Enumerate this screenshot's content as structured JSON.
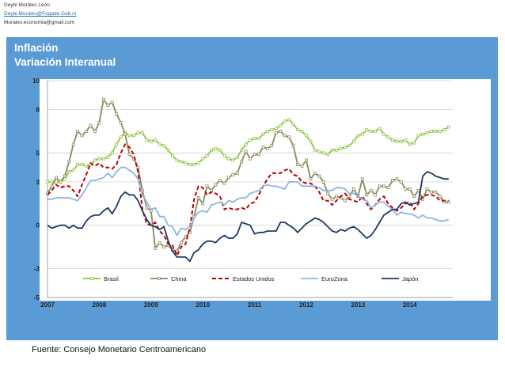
{
  "header": {
    "author": "Deybi Morales León",
    "email1": "Deybi.Morales@Fogade.Gob.ni",
    "email2": "Morales.economia@gmail.com"
  },
  "footer": {
    "source": "Fuente: Consejo Monetario Centroamericano"
  },
  "colors": {
    "panel": "#5b9bd5",
    "brasil": "#8cc63f",
    "china": "#8b8a5c",
    "estados_unidos": "#c00000",
    "eurozona": "#8eb4e3",
    "japon": "#1f3864"
  },
  "chart_data": {
    "type": "line",
    "title": "Inflación",
    "subtitle": "Variación Interanual",
    "xlabel": "",
    "ylabel": "",
    "x_ticks": [
      "2007",
      "2008",
      "2009",
      "2010",
      "2011",
      "2012",
      "2013",
      "2014"
    ],
    "y_ticks": [
      "10",
      "8",
      "5",
      "3",
      "0",
      "-3",
      "-5"
    ],
    "ylim": [
      -5,
      10
    ],
    "xlim": [
      2007.0,
      2014.83
    ],
    "grid": true,
    "legend_position": "bottom-inside",
    "series": [
      {
        "name": "Brasil",
        "color": "#8cc63f",
        "style": "line-square-markers",
        "x": [
          2007.0,
          2007.083,
          2007.167,
          2007.25,
          2007.333,
          2007.417,
          2007.5,
          2007.583,
          2007.667,
          2007.75,
          2007.833,
          2007.917,
          2008.0,
          2008.083,
          2008.167,
          2008.25,
          2008.333,
          2008.417,
          2008.5,
          2008.583,
          2008.667,
          2008.75,
          2008.833,
          2008.917,
          2009.0,
          2009.083,
          2009.167,
          2009.25,
          2009.333,
          2009.417,
          2009.5,
          2009.583,
          2009.667,
          2009.75,
          2009.833,
          2009.917,
          2010.0,
          2010.083,
          2010.167,
          2010.25,
          2010.333,
          2010.417,
          2010.5,
          2010.583,
          2010.667,
          2010.75,
          2010.833,
          2010.917,
          2011.0,
          2011.083,
          2011.167,
          2011.25,
          2011.333,
          2011.417,
          2011.5,
          2011.583,
          2011.667,
          2011.75,
          2011.833,
          2011.917,
          2012.0,
          2012.083,
          2012.167,
          2012.25,
          2012.333,
          2012.417,
          2012.5,
          2012.583,
          2012.667,
          2012.75,
          2012.833,
          2012.917,
          2013.0,
          2013.083,
          2013.167,
          2013.25,
          2013.333,
          2013.417,
          2013.5,
          2013.583,
          2013.667,
          2013.75,
          2013.833,
          2013.917,
          2014.0,
          2014.083,
          2014.167,
          2014.25,
          2014.333,
          2014.417,
          2014.5,
          2014.583,
          2014.667,
          2014.75
        ],
        "values": [
          3.0,
          3.0,
          3.0,
          3.0,
          3.2,
          3.7,
          3.8,
          4.2,
          4.2,
          4.1,
          4.2,
          4.5,
          4.6,
          4.6,
          4.7,
          5.0,
          5.6,
          6.1,
          6.4,
          6.2,
          6.2,
          6.4,
          6.4,
          5.9,
          5.8,
          5.9,
          5.6,
          5.5,
          5.2,
          4.8,
          4.5,
          4.4,
          4.3,
          4.2,
          4.2,
          4.3,
          4.6,
          4.8,
          5.2,
          5.3,
          5.2,
          4.8,
          4.6,
          4.5,
          4.7,
          5.2,
          5.6,
          5.9,
          6.0,
          6.0,
          6.3,
          6.5,
          6.6,
          6.7,
          6.9,
          7.2,
          7.3,
          7.0,
          6.6,
          6.5,
          6.2,
          5.8,
          5.2,
          5.1,
          5.0,
          4.9,
          5.2,
          5.2,
          5.3,
          5.4,
          5.5,
          5.8,
          6.2,
          6.3,
          6.6,
          6.5,
          6.5,
          6.7,
          6.3,
          6.1,
          5.9,
          5.8,
          5.8,
          5.9,
          5.6,
          5.7,
          6.2,
          6.3,
          6.4,
          6.5,
          6.5,
          6.5,
          6.6,
          6.8
        ]
      },
      {
        "name": "China",
        "color": "#8b8a5c",
        "style": "line-square-markers",
        "x": [
          2007.0,
          2007.083,
          2007.167,
          2007.25,
          2007.333,
          2007.417,
          2007.5,
          2007.583,
          2007.667,
          2007.75,
          2007.833,
          2007.917,
          2008.0,
          2008.083,
          2008.167,
          2008.25,
          2008.333,
          2008.417,
          2008.5,
          2008.583,
          2008.667,
          2008.75,
          2008.833,
          2008.917,
          2009.0,
          2009.083,
          2009.167,
          2009.25,
          2009.333,
          2009.417,
          2009.5,
          2009.583,
          2009.667,
          2009.75,
          2009.833,
          2009.917,
          2010.0,
          2010.083,
          2010.167,
          2010.25,
          2010.333,
          2010.417,
          2010.5,
          2010.583,
          2010.667,
          2010.75,
          2010.833,
          2010.917,
          2011.0,
          2011.083,
          2011.167,
          2011.25,
          2011.333,
          2011.417,
          2011.5,
          2011.583,
          2011.667,
          2011.75,
          2011.833,
          2011.917,
          2012.0,
          2012.083,
          2012.167,
          2012.25,
          2012.333,
          2012.417,
          2012.5,
          2012.583,
          2012.667,
          2012.75,
          2012.833,
          2012.917,
          2013.0,
          2013.083,
          2013.167,
          2013.25,
          2013.333,
          2013.417,
          2013.5,
          2013.583,
          2013.667,
          2013.75,
          2013.833,
          2013.917,
          2014.0,
          2014.083,
          2014.167,
          2014.25,
          2014.333,
          2014.417,
          2014.5,
          2014.583,
          2014.667,
          2014.75
        ],
        "values": [
          2.2,
          2.7,
          3.3,
          3.0,
          3.4,
          4.4,
          5.6,
          6.5,
          6.2,
          6.5,
          6.9,
          6.5,
          7.1,
          8.7,
          8.3,
          8.5,
          7.7,
          7.1,
          6.3,
          4.9,
          4.6,
          4.0,
          2.4,
          1.2,
          1.0,
          -1.6,
          -1.2,
          -1.5,
          -1.4,
          -1.7,
          -1.8,
          -1.2,
          -0.8,
          -0.5,
          0.6,
          1.9,
          1.5,
          2.7,
          2.4,
          2.8,
          3.1,
          2.9,
          3.3,
          3.5,
          3.6,
          4.4,
          5.1,
          4.6,
          4.9,
          4.9,
          5.4,
          5.3,
          5.5,
          6.4,
          6.5,
          6.2,
          6.1,
          5.5,
          4.2,
          4.1,
          4.5,
          3.2,
          3.6,
          3.4,
          3.0,
          2.2,
          1.8,
          2.0,
          1.9,
          1.7,
          2.0,
          2.5,
          2.0,
          3.2,
          2.1,
          2.4,
          2.1,
          2.7,
          2.7,
          2.6,
          3.1,
          3.2,
          3.0,
          2.5,
          2.5,
          2.0,
          2.4,
          1.8,
          2.5,
          2.3,
          2.3,
          2.0,
          1.6,
          1.6
        ]
      },
      {
        "name": "Estados Unidos",
        "color": "#c00000",
        "style": "dashed",
        "x": [
          2007.0,
          2007.083,
          2007.167,
          2007.25,
          2007.333,
          2007.417,
          2007.5,
          2007.583,
          2007.667,
          2007.75,
          2007.833,
          2007.917,
          2008.0,
          2008.083,
          2008.167,
          2008.25,
          2008.333,
          2008.417,
          2008.5,
          2008.583,
          2008.667,
          2008.75,
          2008.833,
          2008.917,
          2009.0,
          2009.083,
          2009.167,
          2009.25,
          2009.333,
          2009.417,
          2009.5,
          2009.583,
          2009.667,
          2009.75,
          2009.833,
          2009.917,
          2010.0,
          2010.083,
          2010.167,
          2010.25,
          2010.333,
          2010.417,
          2010.5,
          2010.583,
          2010.667,
          2010.75,
          2010.833,
          2010.917,
          2011.0,
          2011.083,
          2011.167,
          2011.25,
          2011.333,
          2011.417,
          2011.5,
          2011.583,
          2011.667,
          2011.75,
          2011.833,
          2011.917,
          2012.0,
          2012.083,
          2012.167,
          2012.25,
          2012.333,
          2012.417,
          2012.5,
          2012.583,
          2012.667,
          2012.75,
          2012.833,
          2012.917,
          2013.0,
          2013.083,
          2013.167,
          2013.25,
          2013.333,
          2013.417,
          2013.5,
          2013.583,
          2013.667,
          2013.75,
          2013.833,
          2013.917,
          2014.0,
          2014.083,
          2014.167,
          2014.25,
          2014.333,
          2014.417,
          2014.5,
          2014.583,
          2014.667,
          2014.75
        ],
        "values": [
          2.1,
          2.4,
          2.8,
          2.6,
          2.7,
          2.7,
          2.4,
          2.0,
          2.8,
          3.5,
          4.3,
          4.1,
          4.3,
          4.0,
          4.0,
          3.9,
          4.2,
          5.0,
          5.6,
          5.4,
          4.9,
          3.7,
          1.1,
          0.1,
          0.0,
          0.2,
          -0.4,
          -0.7,
          -1.3,
          -1.4,
          -2.1,
          -1.5,
          -1.3,
          -0.2,
          1.8,
          2.7,
          2.6,
          2.1,
          2.3,
          2.2,
          2.0,
          1.1,
          1.2,
          1.1,
          1.1,
          1.2,
          1.1,
          1.5,
          1.6,
          2.1,
          2.7,
          3.2,
          3.6,
          3.6,
          3.6,
          3.8,
          3.9,
          3.5,
          3.4,
          3.0,
          2.9,
          2.9,
          2.7,
          2.3,
          1.7,
          1.7,
          1.4,
          1.7,
          2.0,
          2.2,
          1.8,
          1.7,
          1.6,
          2.0,
          1.5,
          1.1,
          1.4,
          1.8,
          2.0,
          1.5,
          1.2,
          1.0,
          1.2,
          1.5,
          1.6,
          1.1,
          1.5,
          2.0,
          2.1,
          2.1,
          2.0,
          1.7,
          1.7,
          1.7
        ]
      },
      {
        "name": "EuroZona",
        "color": "#8eb4e3",
        "style": "solid",
        "x": [
          2007.0,
          2007.083,
          2007.167,
          2007.25,
          2007.333,
          2007.417,
          2007.5,
          2007.583,
          2007.667,
          2007.75,
          2007.833,
          2007.917,
          2008.0,
          2008.083,
          2008.167,
          2008.25,
          2008.333,
          2008.417,
          2008.5,
          2008.583,
          2008.667,
          2008.75,
          2008.833,
          2008.917,
          2009.0,
          2009.083,
          2009.167,
          2009.25,
          2009.333,
          2009.417,
          2009.5,
          2009.583,
          2009.667,
          2009.75,
          2009.833,
          2009.917,
          2010.0,
          2010.083,
          2010.167,
          2010.25,
          2010.333,
          2010.417,
          2010.5,
          2010.583,
          2010.667,
          2010.75,
          2010.833,
          2010.917,
          2011.0,
          2011.083,
          2011.167,
          2011.25,
          2011.333,
          2011.417,
          2011.5,
          2011.583,
          2011.667,
          2011.75,
          2011.833,
          2011.917,
          2012.0,
          2012.083,
          2012.167,
          2012.25,
          2012.333,
          2012.417,
          2012.5,
          2012.583,
          2012.667,
          2012.75,
          2012.833,
          2012.917,
          2013.0,
          2013.083,
          2013.167,
          2013.25,
          2013.333,
          2013.417,
          2013.5,
          2013.583,
          2013.667,
          2013.75,
          2013.833,
          2013.917,
          2014.0,
          2014.083,
          2014.167,
          2014.25,
          2014.333,
          2014.417,
          2014.5,
          2014.583,
          2014.667,
          2014.75
        ],
        "values": [
          1.8,
          1.8,
          1.9,
          1.9,
          1.9,
          1.9,
          1.8,
          1.7,
          2.1,
          2.6,
          3.1,
          3.1,
          3.2,
          3.3,
          3.6,
          3.3,
          3.7,
          4.0,
          4.0,
          3.8,
          3.6,
          3.2,
          2.1,
          1.6,
          1.1,
          1.2,
          0.6,
          0.6,
          0.0,
          -0.1,
          -0.7,
          -0.2,
          -0.3,
          -0.1,
          0.5,
          0.9,
          1.0,
          0.9,
          1.4,
          1.5,
          1.6,
          1.4,
          1.7,
          1.6,
          1.8,
          1.9,
          1.9,
          2.2,
          2.3,
          2.4,
          2.7,
          2.8,
          2.7,
          2.7,
          2.6,
          2.5,
          3.0,
          3.0,
          3.0,
          2.7,
          2.7,
          2.7,
          2.7,
          2.6,
          2.4,
          2.4,
          2.4,
          2.6,
          2.6,
          2.5,
          2.2,
          2.2,
          2.0,
          1.8,
          1.7,
          1.2,
          1.4,
          1.6,
          1.6,
          1.3,
          1.1,
          0.7,
          0.9,
          0.8,
          0.8,
          0.7,
          0.5,
          0.7,
          0.5,
          0.5,
          0.4,
          0.3,
          0.3,
          0.4
        ]
      },
      {
        "name": "Japón",
        "color": "#1f3864",
        "style": "solid",
        "x": [
          2007.0,
          2007.083,
          2007.167,
          2007.25,
          2007.333,
          2007.417,
          2007.5,
          2007.583,
          2007.667,
          2007.75,
          2007.833,
          2007.917,
          2008.0,
          2008.083,
          2008.167,
          2008.25,
          2008.333,
          2008.417,
          2008.5,
          2008.583,
          2008.667,
          2008.75,
          2008.833,
          2008.917,
          2009.0,
          2009.083,
          2009.167,
          2009.25,
          2009.333,
          2009.417,
          2009.5,
          2009.583,
          2009.667,
          2009.75,
          2009.833,
          2009.917,
          2010.0,
          2010.083,
          2010.167,
          2010.25,
          2010.333,
          2010.417,
          2010.5,
          2010.583,
          2010.667,
          2010.75,
          2010.833,
          2010.917,
          2011.0,
          2011.083,
          2011.167,
          2011.25,
          2011.333,
          2011.417,
          2011.5,
          2011.583,
          2011.667,
          2011.75,
          2011.833,
          2011.917,
          2012.0,
          2012.083,
          2012.167,
          2012.25,
          2012.333,
          2012.417,
          2012.5,
          2012.583,
          2012.667,
          2012.75,
          2012.833,
          2012.917,
          2013.0,
          2013.083,
          2013.167,
          2013.25,
          2013.333,
          2013.417,
          2013.5,
          2013.583,
          2013.667,
          2013.75,
          2013.833,
          2013.917,
          2014.0,
          2014.083,
          2014.167,
          2014.25,
          2014.333,
          2014.417,
          2014.5,
          2014.583,
          2014.667,
          2014.75
        ],
        "values": [
          0.0,
          -0.2,
          -0.1,
          0.0,
          0.0,
          -0.2,
          0.0,
          -0.2,
          -0.2,
          0.3,
          0.6,
          0.7,
          0.7,
          1.0,
          1.2,
          0.8,
          1.3,
          2.0,
          2.3,
          2.1,
          2.1,
          1.7,
          1.0,
          0.4,
          0.0,
          -0.1,
          -0.3,
          -0.1,
          -1.1,
          -1.8,
          -2.2,
          -2.2,
          -2.2,
          -2.5,
          -1.9,
          -1.7,
          -1.3,
          -1.1,
          -1.1,
          -1.2,
          -0.9,
          -0.7,
          -0.9,
          -0.9,
          -0.6,
          0.2,
          0.1,
          0.0,
          -0.6,
          -0.5,
          -0.5,
          -0.4,
          -0.4,
          -0.4,
          0.2,
          0.2,
          0.0,
          -0.2,
          -0.5,
          -0.2,
          0.1,
          0.3,
          0.5,
          0.4,
          0.2,
          -0.1,
          -0.4,
          -0.5,
          -0.3,
          -0.4,
          -0.2,
          -0.1,
          -0.3,
          -0.6,
          -0.9,
          -0.7,
          -0.3,
          0.2,
          0.7,
          0.9,
          1.1,
          1.1,
          1.5,
          1.6,
          1.4,
          1.5,
          1.6,
          3.4,
          3.7,
          3.6,
          3.4,
          3.3,
          3.2,
          3.2
        ]
      }
    ]
  }
}
